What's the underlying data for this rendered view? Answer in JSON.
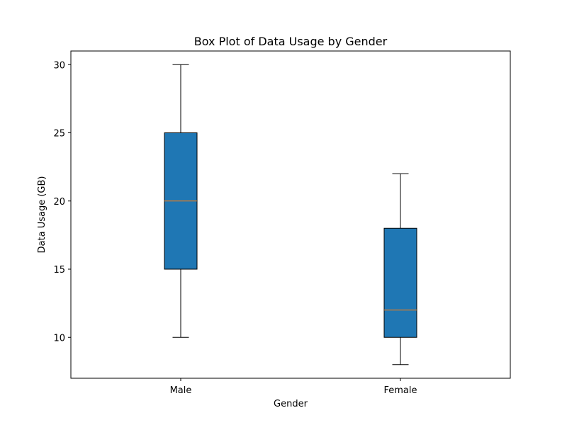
{
  "chart_data": {
    "type": "box",
    "title": "Box Plot of Data Usage by Gender",
    "xlabel": "Gender",
    "ylabel": "Data Usage (GB)",
    "ylim": [
      7,
      31
    ],
    "yticks": [
      10,
      15,
      20,
      25,
      30
    ],
    "categories": [
      "Male",
      "Female"
    ],
    "boxes": [
      {
        "category": "Male",
        "min": 10,
        "q1": 15,
        "median": 20,
        "q3": 25,
        "max": 30
      },
      {
        "category": "Female",
        "min": 8,
        "q1": 10,
        "median": 12,
        "q3": 18,
        "max": 22
      }
    ],
    "box_color": "#1f77b4",
    "median_color": "#ff7f0e",
    "grid": false,
    "legend": "none"
  }
}
